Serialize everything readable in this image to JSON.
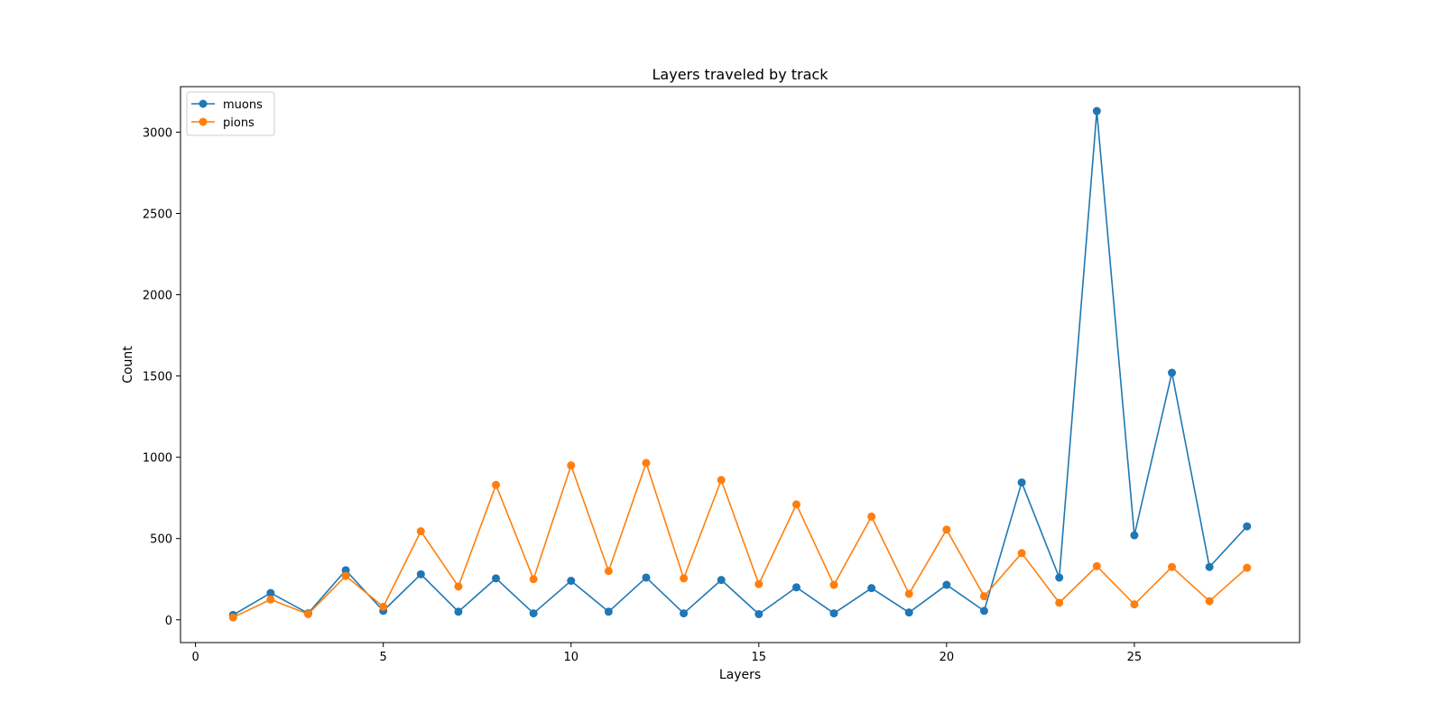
{
  "chart_data": {
    "type": "line",
    "title": "Layers traveled by track",
    "xlabel": "Layers",
    "ylabel": "Count",
    "xlim": [
      -0.4,
      29.4
    ],
    "ylim": [
      -140,
      3280
    ],
    "xticks": [
      0,
      5,
      10,
      15,
      20,
      25
    ],
    "yticks": [
      0,
      500,
      1000,
      1500,
      2000,
      2500,
      3000
    ],
    "grid": false,
    "legend": "top-left",
    "x": [
      1,
      2,
      3,
      4,
      5,
      6,
      7,
      8,
      9,
      10,
      11,
      12,
      13,
      14,
      15,
      16,
      17,
      18,
      19,
      20,
      21,
      22,
      23,
      24,
      25,
      26,
      27,
      28
    ],
    "series": [
      {
        "name": "muons",
        "color": "#1f77b4",
        "values": [
          30,
          165,
          40,
          305,
          55,
          280,
          50,
          255,
          40,
          240,
          50,
          260,
          40,
          245,
          35,
          200,
          40,
          195,
          45,
          215,
          55,
          845,
          260,
          3130,
          520,
          1520,
          325,
          575
        ]
      },
      {
        "name": "pions",
        "color": "#ff7f0e",
        "values": [
          15,
          125,
          35,
          270,
          80,
          545,
          205,
          830,
          250,
          950,
          300,
          965,
          255,
          860,
          220,
          710,
          215,
          635,
          160,
          555,
          145,
          410,
          105,
          330,
          95,
          325,
          115,
          320
        ]
      }
    ]
  }
}
